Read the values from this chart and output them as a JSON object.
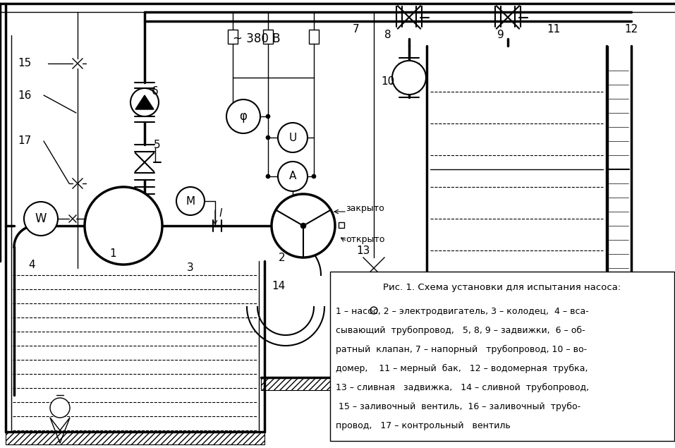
{
  "title": "Рис. 1. Схема установки для испытания насоса:",
  "caption_lines": [
    "1 – насос, 2 – электродвигатель, 3 – колодец,  4 – вса-",
    "сывающий  трубопровод,   5, 8, 9 – задвижки,  6 – об-",
    "ратный  клапан, 7 – напорный   трубопровод, 10 – во-",
    "домер,    11 – мерный  бак,   12 – водомерная  трубка,",
    "13 – сливная   задвижка,   14 – сливной  трубопровод,",
    " 15 – заливочный  вентиль,  16 – заливочный  трубо-",
    "провод,   17 – контрольный   вентиль"
  ],
  "bg_color": "#ffffff",
  "line_color": "#000000",
  "fontsize_caption_title": 9.5,
  "fontsize_caption": 9.0,
  "fontsize_labels": 11
}
